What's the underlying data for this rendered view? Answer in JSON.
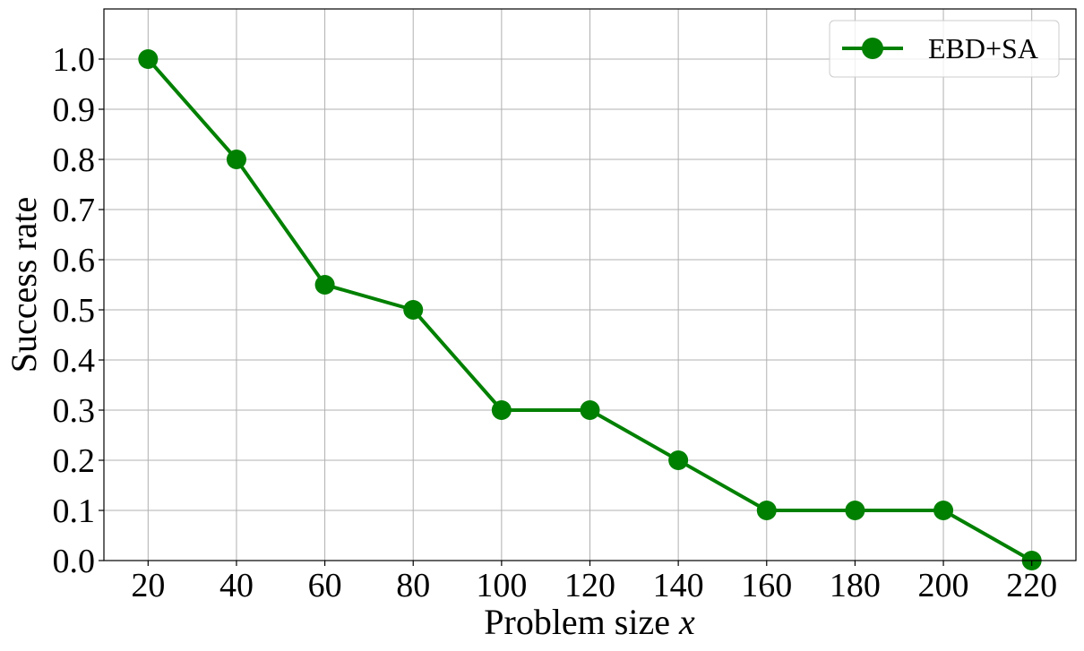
{
  "chart_data": {
    "type": "line",
    "xlabel": "Problem size ",
    "xlabel_var": "x",
    "ylabel": "Success rate",
    "x": [
      20,
      40,
      60,
      80,
      100,
      120,
      140,
      160,
      180,
      200,
      220
    ],
    "xticks": [
      "20",
      "40",
      "60",
      "80",
      "100",
      "120",
      "140",
      "160",
      "180",
      "200",
      "220"
    ],
    "yticks": [
      "0.0",
      "0.1",
      "0.2",
      "0.3",
      "0.4",
      "0.5",
      "0.6",
      "0.7",
      "0.8",
      "0.9",
      "1.0"
    ],
    "ytick_values": [
      0.0,
      0.1,
      0.2,
      0.3,
      0.4,
      0.5,
      0.6,
      0.7,
      0.8,
      0.9,
      1.0
    ],
    "xlim": [
      10,
      230
    ],
    "ylim": [
      0.0,
      1.1
    ],
    "grid": true,
    "legend_position": "top-right",
    "series": [
      {
        "name": "EBD+SA",
        "values": [
          1.0,
          0.8,
          0.55,
          0.5,
          0.3,
          0.3,
          0.2,
          0.1,
          0.1,
          0.1,
          0.0
        ],
        "color": "#008000",
        "marker": "circle"
      }
    ]
  }
}
